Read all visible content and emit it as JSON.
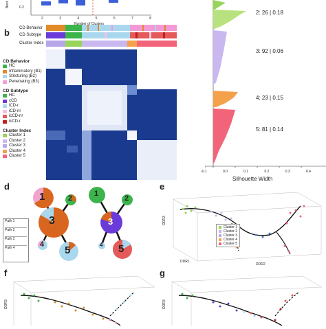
{
  "panels": {
    "b": "b",
    "d": "d",
    "e": "e",
    "f": "f",
    "g": "g"
  },
  "top_fragment": {
    "xlabel": "Number of Clusters",
    "ylabel": "Best",
    "ytick": "0.2",
    "xticks": [
      "2",
      "3",
      "4",
      "5",
      "6",
      "7",
      "8"
    ]
  },
  "heatmap_labels": {
    "behavior": "CD Behavior",
    "subtype": "CD Subtype",
    "cluster": "Cluster Index"
  },
  "legend": {
    "behavior_title": "CD Behavior",
    "behavior": [
      {
        "label": "HC",
        "color": "#3cb44b"
      },
      {
        "label": "Inflammatory (B1)",
        "color": "#e08a2a"
      },
      {
        "label": "Stricturing (B2)",
        "color": "#a9d8ee"
      },
      {
        "label": "Penetrating (B3)",
        "color": "#f39ad6"
      }
    ],
    "subtype_title": "CD Subtype",
    "subtype": [
      {
        "label": "HC",
        "color": "#3cb44b"
      },
      {
        "label": "cCD",
        "color": "#6a3bd9"
      },
      {
        "label": "iCD-r",
        "color": "#a9d8ee"
      },
      {
        "label": "iCD-nr",
        "color": "#f7bfe0"
      },
      {
        "label": "icCD-nr",
        "color": "#e35a58"
      },
      {
        "label": "icCD-r",
        "color": "#c11d1d"
      }
    ],
    "cluster_title": "Cluster Index",
    "cluster": [
      {
        "label": "Cluster 1",
        "color": "#96d45a"
      },
      {
        "label": "Cluster 2",
        "color": "#c9b8f0"
      },
      {
        "label": "Cluster 3",
        "color": "#b8a7e8"
      },
      {
        "label": "Cluster 4",
        "color": "#f5a04a"
      },
      {
        "label": "Cluster 5",
        "color": "#f2647a"
      }
    ]
  },
  "silhouette": {
    "xlabel": "Silhouette Width",
    "xticks": [
      "-0.1",
      "0.0",
      "0.1",
      "0.2",
      "0.3",
      "0.4"
    ],
    "clusters": [
      {
        "label": "2: 26 | 0.18"
      },
      {
        "label": "3: 92 | 0.06"
      },
      {
        "label": "4: 23 | 0.15"
      },
      {
        "label": "5: 81 | 0.14"
      }
    ]
  },
  "path_box": {
    "items": [
      "Path 1",
      "Path 2",
      "Path 3",
      "Path 4"
    ]
  },
  "tree_nodes": [
    "1",
    "2",
    "3",
    "4",
    "5"
  ],
  "tree2_nodes": [
    "1",
    "2",
    "3",
    "4",
    "5"
  ],
  "panel_e": {
    "xlabel": "DDR2",
    "ylabel": "DDR3",
    "zlabel": "DDR1",
    "legend": [
      "Cluster 1",
      "Cluster 2",
      "Cluster 3",
      "Cluster 4",
      "Cluster 5"
    ]
  },
  "axis_f": {
    "ylabel": "DDR3"
  },
  "axis_g": {
    "ylabel": "DDR3"
  }
}
